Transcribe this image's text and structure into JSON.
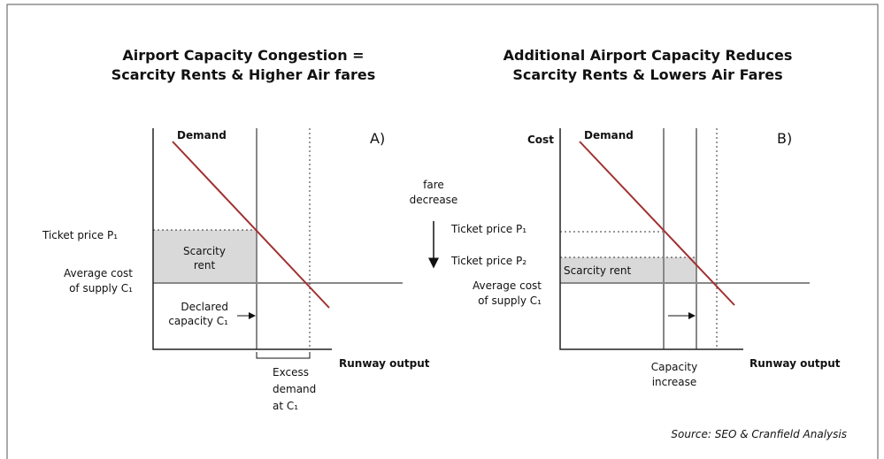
{
  "left": {
    "title": [
      "Airport Capacity Congestion =",
      "Scarcity Rents & Higher Air fares"
    ],
    "demand": "Demand",
    "panel": "A)",
    "ticket_price_p1": "Ticket price P₁",
    "scarcity_rent": [
      "Scarcity",
      "rent"
    ],
    "average_cost": [
      "Average cost",
      "of supply C₁"
    ],
    "declared_capacity": [
      "Declared",
      "capacity C₁"
    ],
    "x_axis": "Runway output",
    "excess_demand": [
      "Excess",
      "demand",
      "at C₁"
    ]
  },
  "right": {
    "title": [
      "Additional Airport Capacity Reduces",
      "Scarcity Rents & Lowers Air Fares"
    ],
    "cost": "Cost",
    "demand": "Demand",
    "panel": "B)",
    "fare_decrease": [
      "fare",
      "decrease"
    ],
    "ticket_price_p1": "Ticket price P₁",
    "ticket_price_p2": "Ticket price P₂",
    "scarcity_rent": "Scarcity rent",
    "average_cost": [
      "Average cost",
      "of supply C₁"
    ],
    "capacity_increase": [
      "Capacity",
      "increase"
    ],
    "x_axis": "Runway output"
  },
  "source": "Source: SEO & Cranfield Analysis"
}
